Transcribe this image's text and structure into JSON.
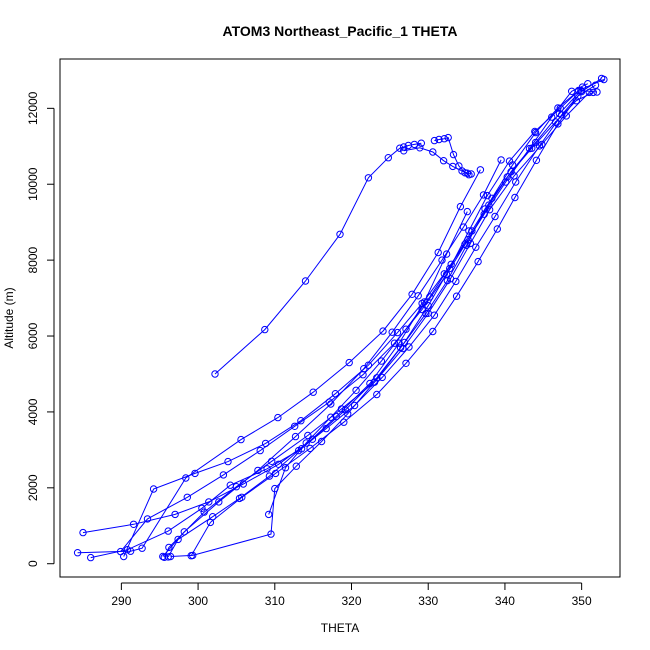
{
  "chart_data": {
    "type": "line",
    "title": "ATOM3 Northeast_Pacific_1 THETA",
    "xlabel": "THETA",
    "ylabel": "Altitude (m)",
    "xlim": [
      282,
      355
    ],
    "ylim": [
      -350,
      13300
    ],
    "xticks": [
      290,
      300,
      310,
      320,
      330,
      340,
      350
    ],
    "yticks": [
      0,
      2000,
      4000,
      6000,
      8000,
      10000,
      12000
    ],
    "grid": false,
    "legend": "none",
    "color": "#0000ff",
    "marker": "open-circle",
    "series": [
      {
        "x": [
          302.2,
          308.7,
          314.0,
          318.5,
          322.2,
          324.8,
          326.3,
          326.8,
          327.4,
          328.2,
          329.1
        ],
        "y": [
          5000,
          6170,
          7450,
          8680,
          10170,
          10700,
          10950,
          10980,
          11020,
          11050,
          11080
        ]
      },
      {
        "x": [
          284.3,
          291.2,
          292.7,
          298.4,
          305.6,
          310.4,
          315.0,
          319.7,
          324.1,
          327.9,
          331.3,
          334.2,
          336.8
        ],
        "y": [
          290,
          330,
          410,
          2260,
          3270,
          3850,
          4520,
          5300,
          6130,
          7100,
          8200,
          9410,
          10380
        ]
      },
      {
        "x": [
          286.0,
          290.8,
          296.1,
          300.5,
          304.2,
          309.0,
          313.5,
          318.0,
          322.4,
          326.2,
          329.5,
          332.4,
          335.1
        ],
        "y": [
          160,
          370,
          860,
          1460,
          2070,
          2500,
          3030,
          3880,
          4750,
          5810,
          6900,
          8160,
          9280
        ]
      },
      {
        "x": [
          295.4,
          298.2,
          302.7,
          307.8,
          312.7,
          317.3,
          321.6,
          325.3,
          328.7,
          331.8,
          334.6,
          337.2,
          339.5
        ],
        "y": [
          190,
          840,
          1630,
          2460,
          3350,
          4210,
          5140,
          6100,
          7060,
          8000,
          8870,
          9720,
          10640
        ]
      },
      {
        "x": [
          299.1,
          301.6,
          305.7,
          310.1,
          314.6,
          319.0,
          323.3,
          327.1,
          330.6,
          333.7,
          336.5,
          339.0,
          341.3,
          344.1,
          346.9,
          349.5,
          351.8
        ],
        "y": [
          210,
          1090,
          1750,
          2380,
          3040,
          3730,
          4460,
          5280,
          6120,
          7050,
          7960,
          8820,
          9650,
          10630,
          11590,
          12320,
          12610
        ]
      },
      {
        "x": [
          290.3,
          294.2,
          299.6,
          303.9,
          308.8,
          313.4,
          317.9,
          322.2,
          326.0,
          329.2,
          332.1,
          334.8,
          337.3,
          340.1,
          343.2,
          346.1,
          348.7,
          350.8
        ],
        "y": [
          190,
          1970,
          2380,
          2690,
          3170,
          3770,
          4480,
          5230,
          6090,
          6860,
          7640,
          8420,
          9210,
          10060,
          10940,
          11770,
          12450,
          12650
        ]
      },
      {
        "x": [
          296.1,
          297.4,
          301.9,
          305.4,
          309.3,
          313.1,
          316.7,
          320.4,
          324.0,
          327.5,
          330.8,
          333.6,
          336.2,
          338.7,
          341.4,
          344.5,
          347.4,
          350.0,
          352.6
        ],
        "y": [
          180,
          640,
          1240,
          1720,
          2310,
          2980,
          3560,
          4170,
          4910,
          5710,
          6550,
          7440,
          8340,
          9150,
          10060,
          11010,
          11830,
          12440,
          12790
        ]
      },
      {
        "x": [
          296.4,
          299.3,
          309.5,
          310.0,
          312.8,
          316.1,
          319.5,
          323.0,
          326.4,
          329.7,
          332.5,
          335.0,
          337.4,
          340.3,
          343.5,
          346.6,
          349.3,
          351.5
        ],
        "y": [
          190,
          220,
          780,
          1980,
          2570,
          3220,
          3950,
          4790,
          5690,
          6590,
          7460,
          8390,
          9350,
          10190,
          10950,
          11640,
          12200,
          12420
        ]
      },
      {
        "x": [
          285.0,
          291.6,
          297.0,
          301.4,
          305.9,
          310.5,
          314.9,
          319.2,
          323.3,
          326.9,
          330.0,
          332.8,
          335.3,
          337.7,
          340.6,
          343.9,
          347.2,
          350.1
        ],
        "y": [
          820,
          1040,
          1300,
          1630,
          2100,
          2620,
          3280,
          4050,
          4900,
          5830,
          6800,
          7780,
          8770,
          9700,
          10610,
          11390,
          12000,
          12560
        ]
      },
      {
        "x": [
          295.6,
          296.2,
          300.8,
          305.0,
          309.6,
          314.3,
          318.7,
          323.0,
          326.7,
          330.0,
          332.9,
          335.5,
          338.0,
          341.2,
          344.8,
          348.0,
          351.0
        ],
        "y": [
          170,
          430,
          1360,
          2030,
          2700,
          3380,
          4080,
          4780,
          5670,
          6600,
          7510,
          8440,
          9330,
          10220,
          11050,
          11800,
          12420
        ]
      },
      {
        "x": [
          289.9,
          293.4,
          298.6,
          303.3,
          308.1,
          312.6,
          317.1,
          321.5,
          325.6,
          329.2,
          332.4,
          335.2,
          337.9,
          340.8,
          344.0,
          347.1,
          349.9,
          352.0
        ],
        "y": [
          320,
          1180,
          1750,
          2340,
          2980,
          3620,
          4260,
          4980,
          5810,
          6700,
          7620,
          8540,
          9450,
          10330,
          11100,
          11860,
          12470,
          12430
        ]
      },
      {
        "x": [
          309.2,
          311.4,
          314.1,
          317.3,
          320.6,
          323.9,
          327.1,
          330.2,
          333.0,
          335.7,
          338.3,
          341.0,
          344.0,
          346.9,
          349.6,
          352.9
        ],
        "y": [
          1300,
          2530,
          3180,
          3860,
          4570,
          5340,
          6180,
          7030,
          7890,
          8770,
          9630,
          10510,
          11360,
          12010,
          12470,
          12760
        ]
      },
      {
        "x": [
          326.8,
          328.9,
          330.6,
          332.0,
          333.2,
          334.4,
          335.1,
          335.6
        ],
        "y": [
          10880,
          10960,
          10850,
          10620,
          10470,
          10350,
          10290,
          10270
        ]
      },
      {
        "x": [
          330.8,
          331.4,
          332.1,
          332.6,
          333.3,
          334.0,
          334.8,
          335.3
        ],
        "y": [
          11150,
          11180,
          11200,
          11230,
          10780,
          10480,
          10300,
          10250
        ]
      }
    ]
  }
}
